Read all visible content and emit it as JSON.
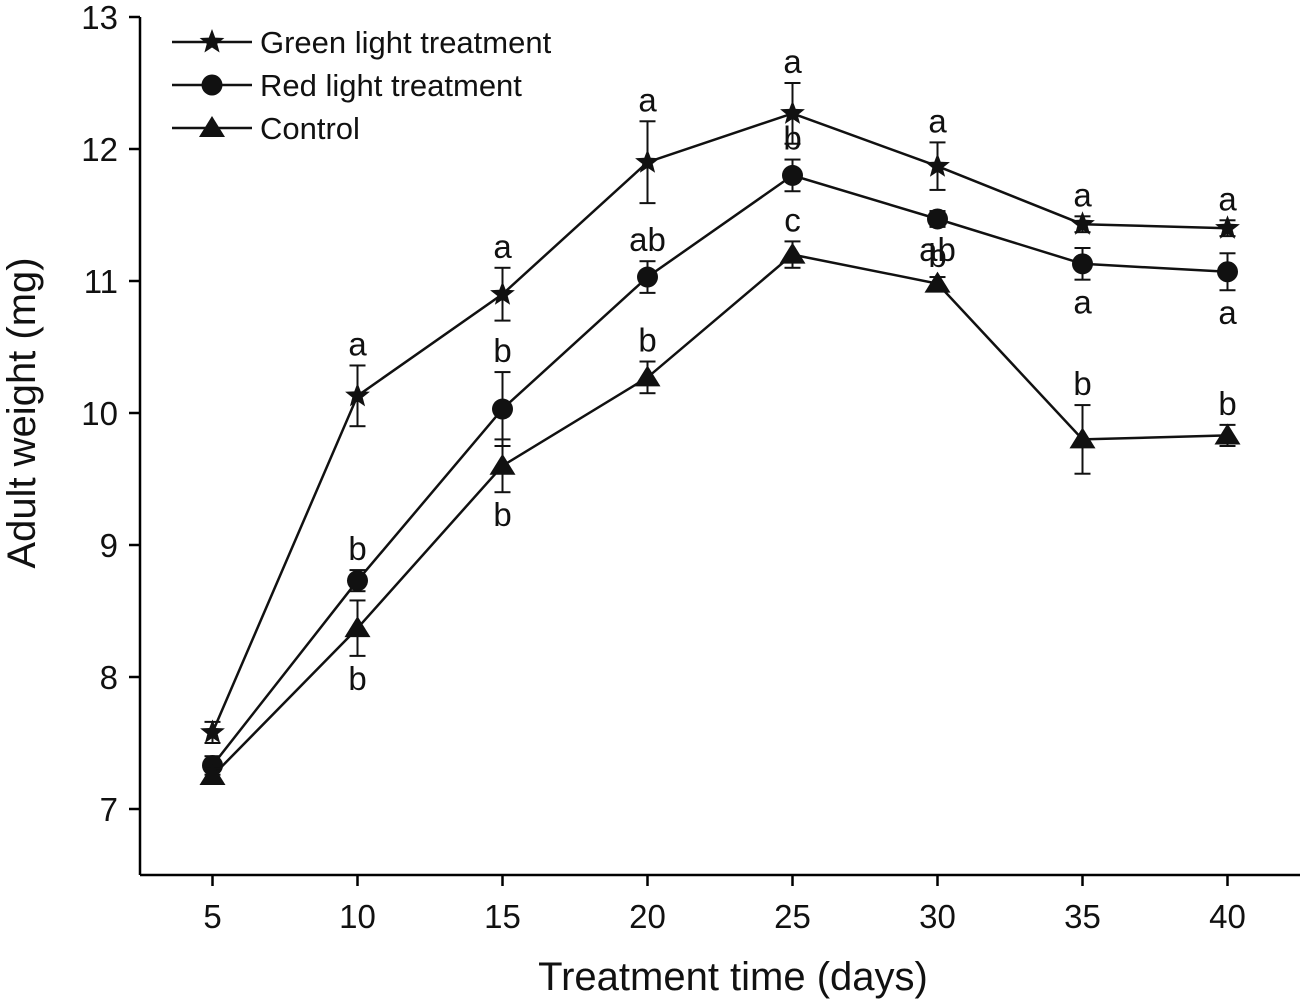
{
  "chart_data": {
    "type": "line",
    "xlabel": "Treatment time (days)",
    "ylabel": "Adult weight (mg)",
    "x": [
      5,
      10,
      15,
      20,
      25,
      30,
      35,
      40
    ],
    "x_ticks": [
      "5",
      "10",
      "15",
      "20",
      "25",
      "30",
      "35",
      "40"
    ],
    "y_ticks": [
      "7",
      "8",
      "9",
      "10",
      "11",
      "12",
      "13"
    ],
    "xlim": [
      2.5,
      42.5
    ],
    "ylim": [
      6.5,
      13
    ],
    "grid": false,
    "legend_position": "top-left",
    "series": [
      {
        "name": "Green light treatment",
        "marker": "star",
        "values": [
          7.58,
          10.13,
          10.9,
          11.9,
          12.27,
          11.87,
          11.43,
          11.4
        ],
        "errors": [
          0.08,
          0.23,
          0.2,
          0.31,
          0.23,
          0.18,
          0.06,
          0.06
        ],
        "labels": [
          "",
          "a",
          "a",
          "a",
          "a",
          "a",
          "a",
          "a"
        ]
      },
      {
        "name": "Red light treatment",
        "marker": "circle",
        "values": [
          7.33,
          8.73,
          10.03,
          11.03,
          11.8,
          11.47,
          11.13,
          11.07
        ],
        "errors": [
          0.07,
          0.08,
          0.28,
          0.12,
          0.12,
          0.06,
          0.12,
          0.14
        ],
        "labels": [
          "",
          "b",
          "b",
          "ab",
          "b",
          "ab",
          "a",
          "a"
        ]
      },
      {
        "name": "Control",
        "marker": "triangle",
        "values": [
          7.25,
          8.37,
          9.6,
          10.27,
          11.2,
          10.98,
          9.8,
          9.83
        ],
        "errors": [
          0.06,
          0.21,
          0.2,
          0.12,
          0.1,
          0.05,
          0.26,
          0.08
        ],
        "labels": [
          "",
          "b",
          "b",
          "b",
          "c",
          "b",
          "b",
          "b"
        ]
      }
    ]
  }
}
